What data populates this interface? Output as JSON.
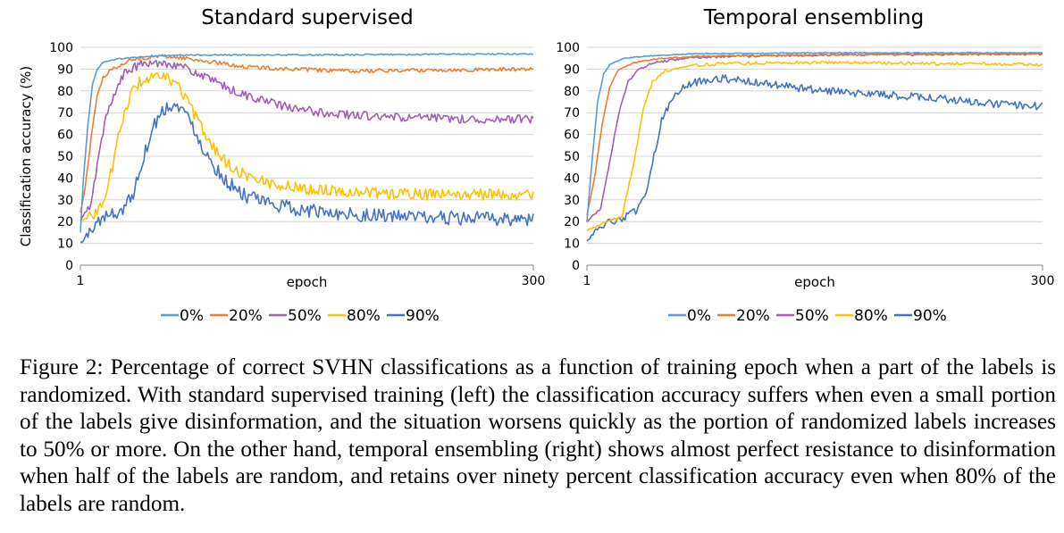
{
  "chart_data": [
    {
      "type": "line",
      "title": "Standard supervised",
      "xlabel": "epoch",
      "ylabel": "Classification accuracy (%)",
      "xlim": [
        1,
        300
      ],
      "ylim": [
        0,
        100
      ],
      "x_ticks": [
        "1",
        "300"
      ],
      "y_ticks": [
        "0",
        "10",
        "20",
        "30",
        "40",
        "50",
        "60",
        "70",
        "80",
        "90",
        "100"
      ],
      "grid": true,
      "legend_position": "bottom",
      "series": [
        {
          "name": "0%",
          "color": "#5b9bd5",
          "noise": 0.3,
          "points": [
            [
              1,
              15
            ],
            [
              3,
              40
            ],
            [
              6,
              65
            ],
            [
              9,
              83
            ],
            [
              12,
              90
            ],
            [
              16,
              93
            ],
            [
              20,
              94
            ],
            [
              30,
              95
            ],
            [
              50,
              96
            ],
            [
              80,
              96.5
            ],
            [
              150,
              96.5
            ],
            [
              300,
              97
            ]
          ]
        },
        {
          "name": "20%",
          "color": "#ed7d31",
          "noise": 0.9,
          "points": [
            [
              1,
              24
            ],
            [
              4,
              35
            ],
            [
              8,
              58
            ],
            [
              12,
              78
            ],
            [
              16,
              86
            ],
            [
              22,
              90
            ],
            [
              30,
              93
            ],
            [
              40,
              95
            ],
            [
              55,
              96
            ],
            [
              70,
              95
            ],
            [
              90,
              93
            ],
            [
              110,
              91
            ],
            [
              140,
              90
            ],
            [
              180,
              89
            ],
            [
              220,
              89.5
            ],
            [
              300,
              90
            ]
          ]
        },
        {
          "name": "50%",
          "color": "#a05eb5",
          "noise": 2.0,
          "points": [
            [
              1,
              20
            ],
            [
              8,
              28
            ],
            [
              13,
              50
            ],
            [
              18,
              68
            ],
            [
              24,
              80
            ],
            [
              30,
              88
            ],
            [
              40,
              92
            ],
            [
              55,
              93
            ],
            [
              65,
              92
            ],
            [
              75,
              89
            ],
            [
              90,
              84
            ],
            [
              105,
              79
            ],
            [
              120,
              76
            ],
            [
              140,
              72
            ],
            [
              160,
              70
            ],
            [
              180,
              69
            ],
            [
              200,
              68
            ],
            [
              230,
              67.5
            ],
            [
              260,
              67
            ],
            [
              300,
              67
            ]
          ]
        },
        {
          "name": "80%",
          "color": "#ffc000",
          "noise": 2.6,
          "points": [
            [
              1,
              22
            ],
            [
              10,
              23
            ],
            [
              17,
              30
            ],
            [
              22,
              45
            ],
            [
              28,
              65
            ],
            [
              34,
              78
            ],
            [
              40,
              84
            ],
            [
              48,
              86
            ],
            [
              58,
              86
            ],
            [
              66,
              82
            ],
            [
              72,
              75
            ],
            [
              80,
              64
            ],
            [
              88,
              55
            ],
            [
              96,
              48
            ],
            [
              105,
              43
            ],
            [
              115,
              40
            ],
            [
              130,
              37
            ],
            [
              150,
              35
            ],
            [
              175,
              34
            ],
            [
              200,
              33
            ],
            [
              230,
              32.5
            ],
            [
              300,
              32.5
            ]
          ]
        },
        {
          "name": "90%",
          "color": "#4472c4",
          "noise": 3.2,
          "points": [
            [
              1,
              10
            ],
            [
              6,
              14
            ],
            [
              12,
              20
            ],
            [
              20,
              23
            ],
            [
              28,
              25
            ],
            [
              36,
              33
            ],
            [
              42,
              48
            ],
            [
              48,
              62
            ],
            [
              54,
              70
            ],
            [
              60,
              74
            ],
            [
              68,
              72
            ],
            [
              76,
              63
            ],
            [
              84,
              51
            ],
            [
              92,
              43
            ],
            [
              100,
              37
            ],
            [
              110,
              32
            ],
            [
              120,
              29
            ],
            [
              135,
              27
            ],
            [
              150,
              25
            ],
            [
              170,
              24
            ],
            [
              190,
              23
            ],
            [
              220,
              22
            ],
            [
              250,
              21.5
            ],
            [
              300,
              21
            ]
          ]
        }
      ]
    },
    {
      "type": "line",
      "title": "Temporal ensembling",
      "xlabel": "epoch",
      "ylabel": "",
      "xlim": [
        1,
        300
      ],
      "ylim": [
        0,
        100
      ],
      "x_ticks": [
        "1",
        "300"
      ],
      "y_ticks": [
        "0",
        "10",
        "20",
        "30",
        "40",
        "50",
        "60",
        "70",
        "80",
        "90",
        "100"
      ],
      "grid": true,
      "legend_position": "bottom",
      "series": [
        {
          "name": "0%",
          "color": "#5b9bd5",
          "noise": 0.2,
          "points": [
            [
              1,
              20
            ],
            [
              4,
              45
            ],
            [
              8,
              75
            ],
            [
              12,
              88
            ],
            [
              16,
              92
            ],
            [
              25,
              95
            ],
            [
              40,
              96
            ],
            [
              70,
              97
            ],
            [
              150,
              97.5
            ],
            [
              300,
              97.5
            ]
          ]
        },
        {
          "name": "20%",
          "color": "#ed7d31",
          "noise": 0.3,
          "points": [
            [
              1,
              23
            ],
            [
              6,
              40
            ],
            [
              11,
              65
            ],
            [
              16,
              82
            ],
            [
              22,
              90
            ],
            [
              32,
              93
            ],
            [
              50,
              95
            ],
            [
              80,
              96
            ],
            [
              150,
              96.5
            ],
            [
              300,
              97
            ]
          ]
        },
        {
          "name": "50%",
          "color": "#a05eb5",
          "noise": 0.5,
          "points": [
            [
              1,
              20
            ],
            [
              10,
              26
            ],
            [
              16,
              48
            ],
            [
              22,
              70
            ],
            [
              28,
              84
            ],
            [
              35,
              90
            ],
            [
              45,
              93
            ],
            [
              65,
              95
            ],
            [
              100,
              96
            ],
            [
              160,
              96.5
            ],
            [
              300,
              97
            ]
          ]
        },
        {
          "name": "80%",
          "color": "#ffc000",
          "noise": 0.7,
          "points": [
            [
              1,
              16
            ],
            [
              14,
              20
            ],
            [
              24,
              22
            ],
            [
              32,
              48
            ],
            [
              38,
              72
            ],
            [
              44,
              84
            ],
            [
              52,
              89
            ],
            [
              65,
              91.5
            ],
            [
              90,
              92.5
            ],
            [
              130,
              93
            ],
            [
              180,
              93
            ],
            [
              240,
              92.5
            ],
            [
              300,
              92
            ]
          ]
        },
        {
          "name": "90%",
          "color": "#4472c4",
          "noise": 1.8,
          "points": [
            [
              1,
              12
            ],
            [
              8,
              16
            ],
            [
              16,
              20
            ],
            [
              26,
              22
            ],
            [
              34,
              25
            ],
            [
              40,
              32
            ],
            [
              45,
              50
            ],
            [
              50,
              66
            ],
            [
              56,
              76
            ],
            [
              62,
              81
            ],
            [
              72,
              84
            ],
            [
              85,
              86
            ],
            [
              100,
              85
            ],
            [
              120,
              83
            ],
            [
              150,
              80.5
            ],
            [
              180,
              79
            ],
            [
              210,
              77.5
            ],
            [
              240,
              76
            ],
            [
              270,
              74
            ],
            [
              300,
              73
            ]
          ]
        }
      ]
    }
  ],
  "caption": "Figure 2: Percentage of correct SVHN classifications as a function of training epoch when a part of the labels is randomized. With standard supervised training (left) the classification accuracy suffers when even a small portion of the labels give disinformation, and the situation worsens quickly as the portion of randomized labels increases to 50% or more. On the other hand, temporal ensembling (right) shows almost perfect resistance to disinformation when half of the labels are random, and retains over ninety percent classification accuracy even when 80% of the labels are random."
}
